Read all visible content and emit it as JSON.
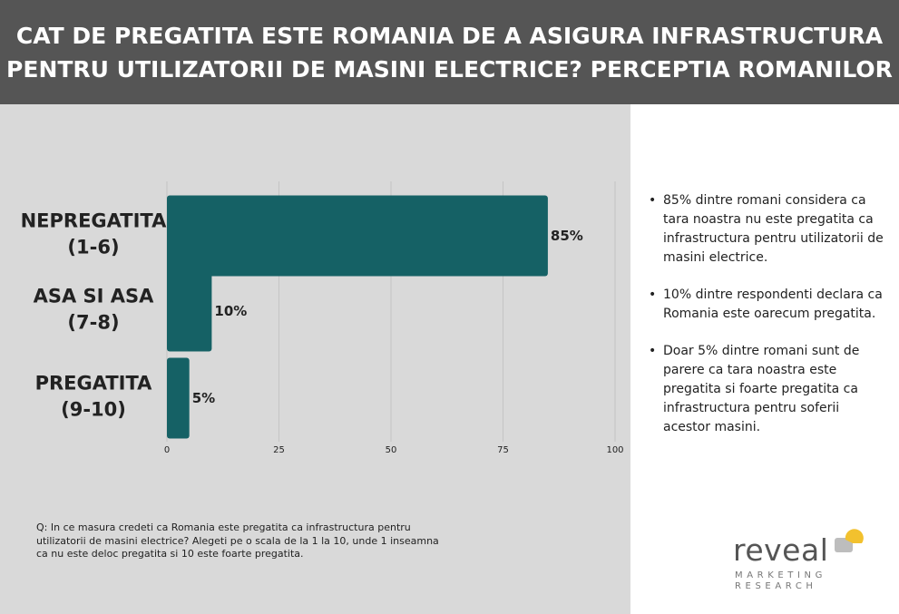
{
  "header": {
    "title_line1": "CAT DE PREGATITA ESTE ROMANIA DE A ASIGURA INFRASTRUCTURA",
    "title_line2": "PENTRU UTILIZATORII DE MASINI ELECTRICE? PERCEPTIA ROMANILOR"
  },
  "chart_data": {
    "type": "bar",
    "orientation": "horizontal",
    "categories": [
      [
        "NEPREGATITA",
        "(1-6)"
      ],
      [
        "ASA SI ASA",
        "(7-8)"
      ],
      [
        "PREGATITA",
        "(9-10)"
      ]
    ],
    "values": [
      85,
      10,
      5
    ],
    "value_labels": [
      "85%",
      "10%",
      "5%"
    ],
    "xlim": [
      0,
      100
    ],
    "xticks": [
      0,
      25,
      50,
      75,
      100
    ],
    "grid": true,
    "bar_color": "#156165"
  },
  "question": "Q: In ce masura credeti ca Romania este pregatita ca infrastructura pentru utilizatorii de masini electrice? Alegeti pe o scala de la 1 la 10, unde 1 inseamna ca nu este deloc pregatita si 10 este foarte pregatita.",
  "notes": [
    "85% dintre romani considera ca tara noastra nu este pregatita ca infrastructura pentru utilizatorii de masini electrice.",
    "10% dintre respondenti declara ca Romania este oarecum pregatita.",
    "Doar 5% dintre romani sunt de parere ca tara noastra este pregatita si foarte pregatita ca infrastructura pentru soferii acestor masini."
  ],
  "bullet": "•",
  "logo": {
    "word": "reveal",
    "line1": "MARKETING",
    "line2": "RESEARCH",
    "accent": "#f2c12e"
  }
}
